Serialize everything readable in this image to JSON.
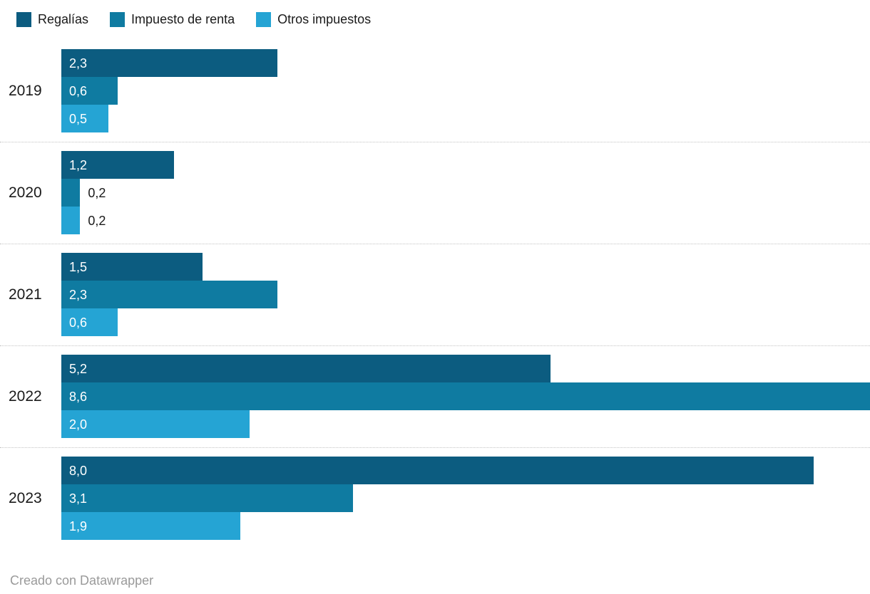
{
  "legend": {
    "items": [
      {
        "label": "Regalías",
        "color": "#0c5c80"
      },
      {
        "label": "Impuesto de renta",
        "color": "#0f7ba1"
      },
      {
        "label": "Otros impuestos",
        "color": "#25a4d4"
      }
    ]
  },
  "chart_data": {
    "type": "bar",
    "orientation": "horizontal",
    "categories": [
      "2019",
      "2020",
      "2021",
      "2022",
      "2023"
    ],
    "series": [
      {
        "name": "Regalías",
        "color": "#0c5c80",
        "values": [
          2.3,
          1.2,
          1.5,
          5.2,
          8.0
        ],
        "labels": [
          "2,3",
          "1,2",
          "1,5",
          "5,2",
          "8,0"
        ]
      },
      {
        "name": "Impuesto de renta",
        "color": "#0f7ba1",
        "values": [
          0.6,
          0.2,
          2.3,
          8.6,
          3.1
        ],
        "labels": [
          "0,6",
          "0,2",
          "2,3",
          "8,6",
          "3,1"
        ]
      },
      {
        "name": "Otros impuestos",
        "color": "#25a4d4",
        "values": [
          0.5,
          0.2,
          0.6,
          2.0,
          1.9
        ],
        "labels": [
          "0,5",
          "0,2",
          "0,6",
          "2,0",
          "1,9"
        ]
      }
    ],
    "xmax": 8.6,
    "value_label_position": "inside-start, outside for short bars",
    "grid": "dotted separators between category groups",
    "legend_position": "top-left"
  },
  "footer": {
    "credit": "Creado con Datawrapper"
  }
}
